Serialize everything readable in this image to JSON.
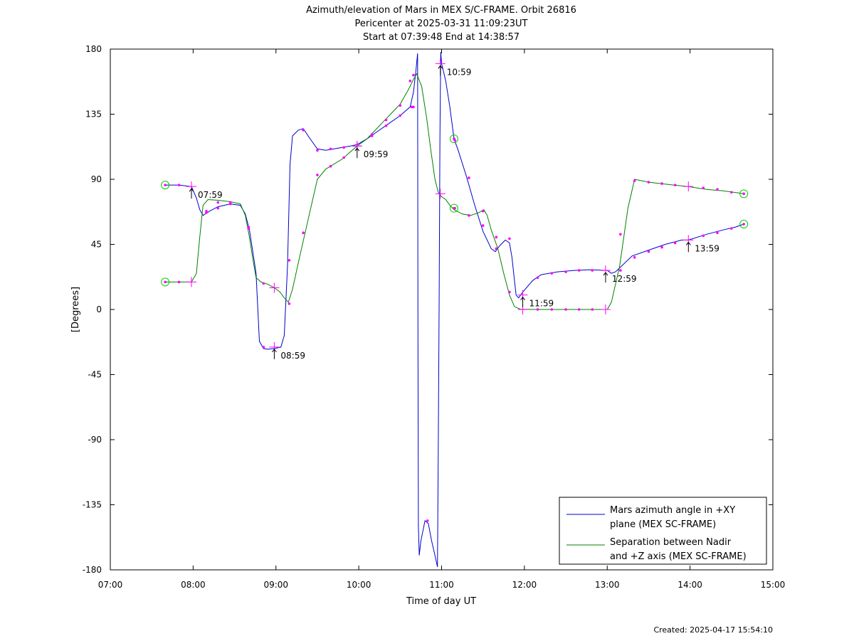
{
  "chart_data": {
    "type": "line",
    "title": "Azimuth/elevation of Mars in MEX S/C-FRAME.  Orbit 26816",
    "subtitle": "Pericenter at 2025-03-31 11:09:23UT",
    "subtitle2": "Start at 07:39:48 End at 14:38:57",
    "xlabel": "Time of day UT",
    "ylabel": "[Degrees]",
    "xlim": [
      7,
      15
    ],
    "ylim": [
      -180,
      180
    ],
    "x_ticks": [
      7,
      8,
      9,
      10,
      11,
      12,
      13,
      14,
      15
    ],
    "x_tick_labels": [
      "07:00",
      "08:00",
      "09:00",
      "10:00",
      "11:00",
      "12:00",
      "13:00",
      "14:00",
      "15:00"
    ],
    "y_ticks": [
      180,
      135,
      90,
      45,
      0,
      -45,
      -90,
      -135,
      -180
    ],
    "y_tick_labels": [
      "180",
      "135",
      "90",
      "45",
      "0",
      "-45",
      "-90",
      "-135",
      "-180"
    ],
    "legend_position": "bottom-right",
    "footer": "Created: 2025-04-17 15:54:10",
    "series": [
      {
        "name": "Mars azimuth angle in +XY plane (MEX SC-FRAME)",
        "legend_lines": [
          "Mars azimuth angle in +XY",
          "plane (MEX SC-FRAME)"
        ],
        "color": "#0000cc",
        "points": [
          [
            7.663,
            86
          ],
          [
            7.83,
            86
          ],
          [
            7.98,
            85
          ],
          [
            8.04,
            77
          ],
          [
            8.08,
            69
          ],
          [
            8.12,
            65
          ],
          [
            8.2,
            68
          ],
          [
            8.3,
            71
          ],
          [
            8.45,
            73
          ],
          [
            8.57,
            72
          ],
          [
            8.63,
            66
          ],
          [
            8.68,
            55
          ],
          [
            8.72,
            40
          ],
          [
            8.76,
            25
          ],
          [
            8.8,
            -22
          ],
          [
            8.85,
            -27
          ],
          [
            8.9,
            -27.5
          ],
          [
            8.98,
            -27
          ],
          [
            9.06,
            -26
          ],
          [
            9.1,
            -18
          ],
          [
            9.14,
            30
          ],
          [
            9.17,
            100
          ],
          [
            9.2,
            120
          ],
          [
            9.27,
            124
          ],
          [
            9.33,
            125
          ],
          [
            9.4,
            119
          ],
          [
            9.5,
            111
          ],
          [
            9.6,
            110
          ],
          [
            9.7,
            111
          ],
          [
            9.8,
            112
          ],
          [
            9.9,
            113
          ],
          [
            9.98,
            114
          ],
          [
            10.1,
            118
          ],
          [
            10.2,
            122
          ],
          [
            10.35,
            128
          ],
          [
            10.5,
            134
          ],
          [
            10.62,
            140
          ],
          [
            10.66,
            150
          ],
          [
            10.69,
            165
          ],
          [
            10.71,
            177
          ],
          [
            10.715,
            -20
          ],
          [
            10.72,
            -150
          ],
          [
            10.73,
            -170
          ],
          [
            10.75,
            -160
          ],
          [
            10.8,
            -146
          ],
          [
            10.84,
            -148
          ],
          [
            10.88,
            -160
          ],
          [
            10.92,
            -170
          ],
          [
            10.95,
            -178
          ],
          [
            10.96,
            -100
          ],
          [
            10.97,
            0
          ],
          [
            10.98,
            120
          ],
          [
            10.99,
            178
          ],
          [
            11.0,
            170
          ],
          [
            11.05,
            158
          ],
          [
            11.1,
            140
          ],
          [
            11.15,
            118
          ],
          [
            11.2,
            110
          ],
          [
            11.3,
            92
          ],
          [
            11.4,
            72
          ],
          [
            11.5,
            54
          ],
          [
            11.6,
            42
          ],
          [
            11.65,
            40
          ],
          [
            11.7,
            44
          ],
          [
            11.77,
            48
          ],
          [
            11.82,
            46
          ],
          [
            11.85,
            36
          ],
          [
            11.88,
            20
          ],
          [
            11.9,
            10
          ],
          [
            11.93,
            8
          ],
          [
            11.98,
            12
          ],
          [
            12.1,
            20
          ],
          [
            12.2,
            24
          ],
          [
            12.4,
            26
          ],
          [
            12.6,
            27
          ],
          [
            12.8,
            27.5
          ],
          [
            13.0,
            27
          ],
          [
            13.05,
            25
          ],
          [
            13.1,
            26
          ],
          [
            13.3,
            37
          ],
          [
            13.5,
            41
          ],
          [
            13.7,
            45
          ],
          [
            13.9,
            48
          ],
          [
            13.98,
            48
          ],
          [
            14.2,
            52
          ],
          [
            14.4,
            55
          ],
          [
            14.55,
            57
          ],
          [
            14.649,
            59
          ]
        ]
      },
      {
        "name": "Separation between Nadir and +Z axis (MEX SC-FRAME)",
        "legend_lines": [
          "Separation between Nadir",
          "and +Z axis (MEX SC-FRAME)"
        ],
        "color": "#008000",
        "points": [
          [
            7.663,
            19
          ],
          [
            7.83,
            19
          ],
          [
            7.98,
            19
          ],
          [
            8.04,
            25
          ],
          [
            8.08,
            50
          ],
          [
            8.12,
            72
          ],
          [
            8.18,
            76
          ],
          [
            8.3,
            75.5
          ],
          [
            8.45,
            74.5
          ],
          [
            8.57,
            73
          ],
          [
            8.63,
            65
          ],
          [
            8.68,
            50
          ],
          [
            8.72,
            35
          ],
          [
            8.76,
            22
          ],
          [
            8.82,
            19
          ],
          [
            8.9,
            17.5
          ],
          [
            8.98,
            15
          ],
          [
            9.05,
            12
          ],
          [
            9.1,
            8
          ],
          [
            9.15,
            5
          ],
          [
            9.2,
            14
          ],
          [
            9.3,
            40
          ],
          [
            9.4,
            65
          ],
          [
            9.5,
            90
          ],
          [
            9.6,
            97
          ],
          [
            9.8,
            104
          ],
          [
            9.98,
            113
          ],
          [
            10.1,
            118
          ],
          [
            10.2,
            124
          ],
          [
            10.3,
            130
          ],
          [
            10.4,
            136
          ],
          [
            10.5,
            142
          ],
          [
            10.6,
            152
          ],
          [
            10.66,
            159
          ],
          [
            10.7,
            163
          ],
          [
            10.76,
            154
          ],
          [
            10.82,
            132
          ],
          [
            10.87,
            110
          ],
          [
            10.92,
            90
          ],
          [
            10.96,
            81
          ],
          [
            11.0,
            78
          ],
          [
            11.05,
            76
          ],
          [
            11.1,
            72
          ],
          [
            11.15,
            69
          ],
          [
            11.25,
            66
          ],
          [
            11.35,
            65
          ],
          [
            11.45,
            67
          ],
          [
            11.51,
            69
          ],
          [
            11.55,
            65
          ],
          [
            11.6,
            55
          ],
          [
            11.68,
            42
          ],
          [
            11.75,
            25
          ],
          [
            11.82,
            10
          ],
          [
            11.88,
            2
          ],
          [
            11.95,
            0.2
          ],
          [
            12.1,
            0
          ],
          [
            12.5,
            0
          ],
          [
            13.0,
            0
          ],
          [
            13.05,
            5
          ],
          [
            13.15,
            30
          ],
          [
            13.25,
            70
          ],
          [
            13.33,
            90
          ],
          [
            13.5,
            88
          ],
          [
            13.8,
            86
          ],
          [
            13.98,
            85
          ],
          [
            14.2,
            83
          ],
          [
            14.4,
            82
          ],
          [
            14.649,
            80
          ]
        ]
      }
    ],
    "dot_markers": [
      [
        7.83,
        86
      ],
      [
        8.16,
        67
      ],
      [
        8.3,
        70
      ],
      [
        8.45,
        73
      ],
      [
        8.67,
        57
      ],
      [
        8.85,
        -26
      ],
      [
        9.16,
        34
      ],
      [
        9.33,
        124
      ],
      [
        9.5,
        110
      ],
      [
        9.66,
        111
      ],
      [
        9.82,
        112
      ],
      [
        10.16,
        120
      ],
      [
        10.33,
        127
      ],
      [
        10.5,
        134
      ],
      [
        10.66,
        140
      ],
      [
        11.16,
        117
      ],
      [
        11.33,
        91
      ],
      [
        11.5,
        58
      ],
      [
        11.66,
        42
      ],
      [
        11.82,
        49
      ],
      [
        12.16,
        22
      ],
      [
        12.33,
        25
      ],
      [
        12.5,
        26
      ],
      [
        12.66,
        27
      ],
      [
        12.82,
        27
      ],
      [
        13.16,
        27
      ],
      [
        13.33,
        36
      ],
      [
        13.5,
        40
      ],
      [
        13.66,
        43
      ],
      [
        13.82,
        46
      ],
      [
        14.16,
        51
      ],
      [
        14.33,
        53
      ],
      [
        14.5,
        56
      ],
      [
        7.83,
        19
      ],
      [
        8.16,
        68
      ],
      [
        8.3,
        74
      ],
      [
        8.45,
        74
      ],
      [
        8.67,
        56
      ],
      [
        8.85,
        18
      ],
      [
        9.16,
        4
      ],
      [
        9.33,
        53
      ],
      [
        9.5,
        93
      ],
      [
        9.66,
        99
      ],
      [
        9.82,
        105
      ],
      [
        10.16,
        121
      ],
      [
        10.33,
        131
      ],
      [
        10.5,
        141
      ],
      [
        10.66,
        162
      ],
      [
        11.16,
        70
      ],
      [
        11.33,
        65
      ],
      [
        11.5,
        68
      ],
      [
        11.66,
        50
      ],
      [
        11.82,
        12
      ],
      [
        12.16,
        0
      ],
      [
        12.33,
        0
      ],
      [
        12.5,
        0
      ],
      [
        12.66,
        0
      ],
      [
        12.82,
        0
      ],
      [
        13.16,
        52
      ],
      [
        13.33,
        89
      ],
      [
        13.5,
        88
      ],
      [
        13.66,
        87
      ],
      [
        13.82,
        86
      ],
      [
        14.16,
        84
      ],
      [
        14.33,
        83
      ],
      [
        14.5,
        81
      ],
      [
        10.62,
        158
      ],
      [
        10.64,
        140
      ],
      [
        10.83,
        -146
      ]
    ],
    "cross_markers": [
      [
        7.98,
        85
      ],
      [
        7.98,
        19
      ],
      [
        8.98,
        -26
      ],
      [
        8.98,
        15
      ],
      [
        9.98,
        113
      ],
      [
        9.98,
        113
      ],
      [
        10.985,
        170
      ],
      [
        10.985,
        80
      ],
      [
        11.98,
        10
      ],
      [
        11.98,
        0
      ],
      [
        12.98,
        27
      ],
      [
        12.98,
        0
      ],
      [
        13.98,
        48
      ],
      [
        13.98,
        85
      ]
    ],
    "circle_markers": [
      [
        7.663,
        86
      ],
      [
        7.663,
        19
      ],
      [
        11.15,
        118
      ],
      [
        11.15,
        70
      ],
      [
        14.649,
        59
      ],
      [
        14.649,
        80
      ]
    ],
    "hour_annotations": [
      {
        "label": "07:59",
        "x": 7.98,
        "y": 85
      },
      {
        "label": "08:59",
        "x": 8.98,
        "y": -26
      },
      {
        "label": "09:59",
        "x": 9.98,
        "y": 113
      },
      {
        "label": "10:59",
        "x": 10.985,
        "y": 170
      },
      {
        "label": "11:59",
        "x": 11.98,
        "y": 10
      },
      {
        "label": "12:59",
        "x": 12.98,
        "y": 27
      },
      {
        "label": "13:59",
        "x": 13.98,
        "y": 48
      }
    ]
  }
}
